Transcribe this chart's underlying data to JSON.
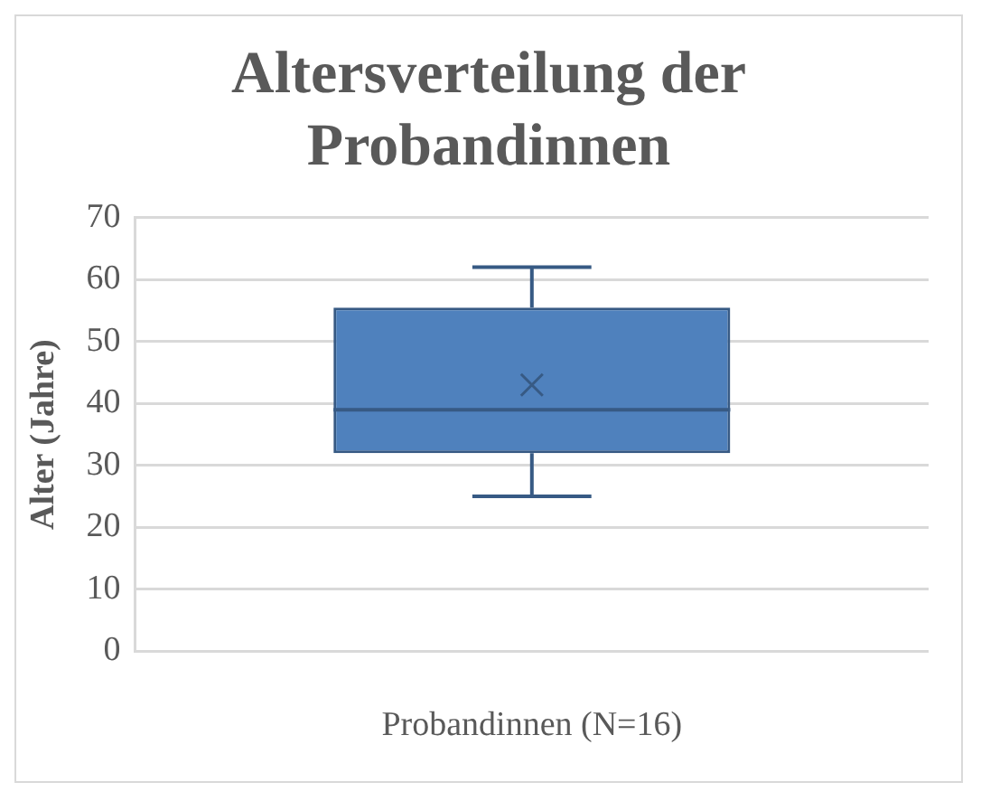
{
  "chart_data": {
    "type": "box",
    "title": "Altersverteilung der Probandinnen",
    "xlabel": "Probandinnen (N=16)",
    "ylabel": "Alter (Jahre)",
    "categories": [
      null
    ],
    "series": [
      {
        "color": "#4f81bd",
        "boxes": [
          {
            "low": 25,
            "q1": 32,
            "median": 39,
            "q3": 55.5,
            "high": 62,
            "mean": 43
          }
        ]
      }
    ],
    "ylim": [
      0,
      70
    ],
    "yticks": [
      0,
      10,
      20,
      30,
      40,
      50,
      60,
      70
    ],
    "grid": "y",
    "legend": false
  }
}
